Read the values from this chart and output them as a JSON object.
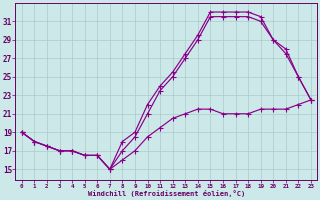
{
  "xlabel": "Windchill (Refroidissement éolien,°C)",
  "bg_color": "#cde8e8",
  "grid_color": "#aacccc",
  "line_color": "#880088",
  "label_color": "#660066",
  "xlim": [
    -0.5,
    23.5
  ],
  "ylim": [
    13.8,
    33.0
  ],
  "x_ticks": [
    0,
    1,
    2,
    3,
    4,
    5,
    6,
    7,
    8,
    9,
    10,
    11,
    12,
    13,
    14,
    15,
    16,
    17,
    18,
    19,
    20,
    21,
    22,
    23
  ],
  "y_ticks": [
    15,
    17,
    19,
    21,
    23,
    25,
    27,
    29,
    31
  ],
  "line1_x": [
    0,
    1,
    2,
    3,
    4,
    5,
    6,
    7,
    8,
    9,
    10,
    11,
    12,
    13,
    14,
    15,
    16,
    17,
    18,
    19,
    20,
    21,
    22,
    23
  ],
  "line1_y": [
    19,
    18,
    17.5,
    17,
    17,
    16.5,
    16.5,
    15,
    18,
    19,
    22,
    24,
    25.5,
    27.5,
    29.5,
    32,
    32,
    32,
    32,
    31.5,
    29,
    28,
    25,
    22.5
  ],
  "line2_x": [
    0,
    1,
    2,
    3,
    4,
    5,
    6,
    7,
    8,
    9,
    10,
    11,
    12,
    13,
    14,
    15,
    16,
    17,
    18,
    19,
    20,
    21,
    22,
    23
  ],
  "line2_y": [
    19,
    18,
    17.5,
    17,
    17,
    16.5,
    16.5,
    15,
    17,
    18.5,
    21,
    23.5,
    25,
    27,
    29,
    31.5,
    31.5,
    31.5,
    31.5,
    31,
    29,
    27.5,
    25,
    22.5
  ],
  "line3_x": [
    0,
    1,
    2,
    3,
    4,
    5,
    6,
    7,
    8,
    9,
    10,
    11,
    12,
    13,
    14,
    15,
    16,
    17,
    18,
    19,
    20,
    21,
    22,
    23
  ],
  "line3_y": [
    19,
    18,
    17.5,
    17,
    17,
    16.5,
    16.5,
    15,
    16,
    17,
    18.5,
    19.5,
    20.5,
    21,
    21.5,
    21.5,
    21,
    21,
    21,
    21.5,
    21.5,
    21.5,
    22,
    22.5
  ]
}
